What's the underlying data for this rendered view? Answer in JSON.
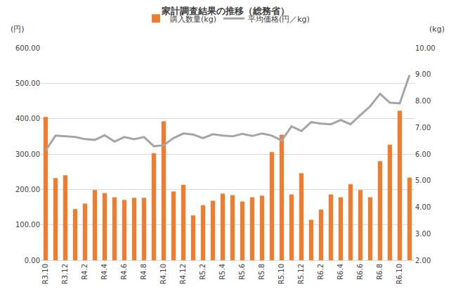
{
  "chart_data": {
    "type": "bar",
    "title": "家計調査結果の推移（総務省）",
    "y_label": "(円)",
    "y2_label": "(kg)",
    "categories": [
      "R3.10",
      null,
      "R3.12",
      null,
      "R4.2",
      null,
      "R4.4",
      null,
      "R4.6",
      null,
      "R4.8",
      null,
      "R4.10",
      null,
      "R4.12",
      null,
      "R5.2",
      null,
      "R5.4",
      null,
      "R5.6",
      null,
      "R5.8",
      null,
      "R5.10",
      null,
      "R5.12",
      null,
      "R6.2",
      null,
      "R6.4",
      null,
      "R6.6",
      null,
      "R6.8",
      null,
      "R6.10",
      null
    ],
    "series": [
      {
        "name": "購入数量(kg)",
        "type": "bar",
        "axis": "y2",
        "color": "#ed7d31",
        "values": [
          7.4,
          5.09,
          5.2,
          3.93,
          4.13,
          4.64,
          4.53,
          4.37,
          4.27,
          4.35,
          4.35,
          6.03,
          7.23,
          4.59,
          4.84,
          3.69,
          4.07,
          4.24,
          4.51,
          4.45,
          4.21,
          4.37,
          4.43,
          6.07,
          6.73,
          4.48,
          5.28,
          3.52,
          3.91,
          4.48,
          4.37,
          4.87,
          4.64,
          4.37,
          5.73,
          6.35,
          7.63,
          5.11
        ]
      },
      {
        "name": "平均価格(円／kg)",
        "type": "line",
        "color": "#a5a5a5",
        "values": [
          310,
          352,
          350,
          348,
          342,
          340,
          353,
          335,
          348,
          342,
          348,
          322,
          325,
          345,
          358,
          355,
          345,
          356,
          352,
          350,
          357,
          351,
          358,
          352,
          338,
          378,
          365,
          390,
          386,
          384,
          396,
          384,
          410,
          435,
          470,
          445,
          443,
          523
        ]
      }
    ],
    "ylim": [
      0,
      600
    ],
    "yticks": [
      {
        "value": 0,
        "label": "0.00"
      },
      {
        "value": 100,
        "label": "100.00"
      },
      {
        "value": 200,
        "label": "200.00"
      },
      {
        "value": 300,
        "label": "300.00"
      },
      {
        "value": 400,
        "label": "400.00"
      },
      {
        "value": 500,
        "label": "500.00"
      },
      {
        "value": 600,
        "label": "600.00"
      }
    ],
    "y2lim": [
      2,
      10
    ],
    "y2ticks": [
      {
        "value": 2,
        "label": "2.00"
      },
      {
        "value": 3,
        "label": "3.00"
      },
      {
        "value": 4,
        "label": "4.00"
      },
      {
        "value": 5,
        "label": "5.00"
      },
      {
        "value": 6,
        "label": "6.00"
      },
      {
        "value": 7,
        "label": "7.00"
      },
      {
        "value": 8,
        "label": "8.00"
      },
      {
        "value": 9,
        "label": "9.00"
      },
      {
        "value": 10,
        "label": "10.00"
      }
    ],
    "grid": true,
    "legend": "top"
  }
}
